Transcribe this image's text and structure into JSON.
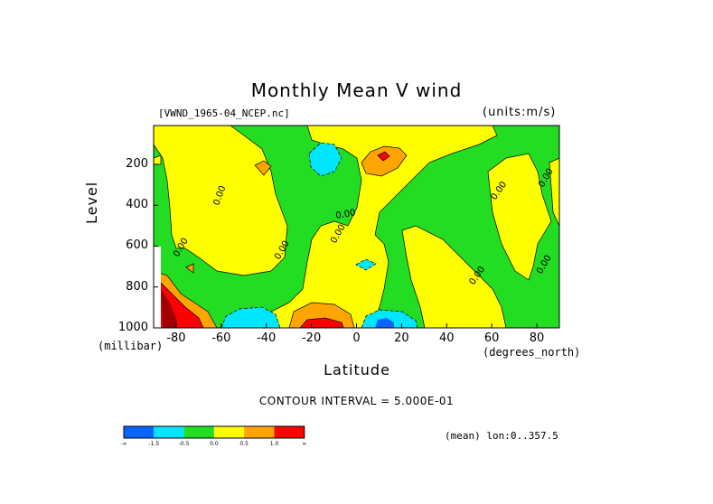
{
  "chart_data": {
    "type": "heatmap",
    "title": "Monthly Mean V wind",
    "dataset": "[VWND_1965-04_NCEP.nc]",
    "units": "(units:m/s)",
    "xlabel": "Latitude",
    "xunit": "(degrees_north)",
    "ylabel": "Level",
    "yunit": "(millibar)",
    "xlim": [
      -90,
      90
    ],
    "ylim": [
      1000,
      10
    ],
    "x_ticks": [
      -80,
      -60,
      -40,
      -20,
      0,
      20,
      40,
      60,
      80
    ],
    "y_ticks": [
      200,
      400,
      600,
      800,
      1000
    ],
    "contour_interval_text": "CONTOUR INTERVAL = 5.000E-01",
    "mean_text": "(mean) lon:0..357.5",
    "colorbar": {
      "colors": [
        "#0a64ff",
        "#00e6ff",
        "#22dd22",
        "#ffff00",
        "#ffa500",
        "#ff0000"
      ],
      "labels": [
        "-∞",
        "-1.5",
        "-0.5",
        "0.0",
        "0.5",
        "1.0",
        "∞"
      ]
    },
    "contour_labels": [
      "0.00",
      "0.00",
      "0.00",
      "0.00",
      "0.00",
      "0.00",
      "0.00",
      "0.00",
      "0.00"
    ]
  }
}
